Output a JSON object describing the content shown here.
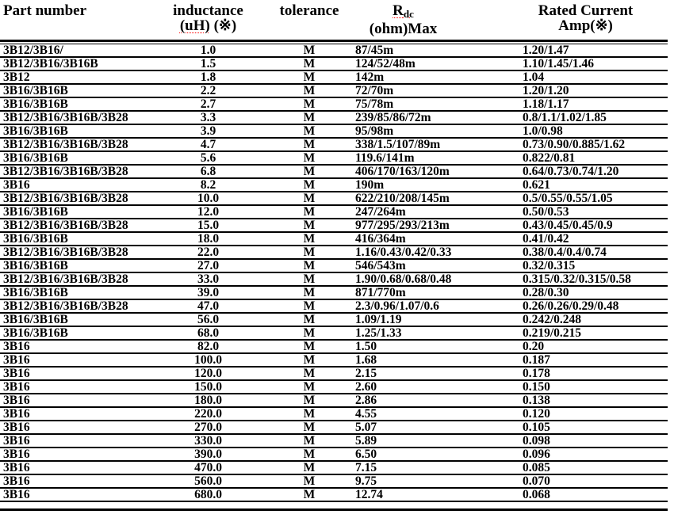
{
  "header": {
    "part_number": "Part number",
    "inductance_line1": "inductance",
    "inductance_uh": "(uH)",
    "inductance_ref": "(※)",
    "tolerance": "tolerance",
    "rdc_main": "R",
    "rdc_sub": "dc",
    "rdc_line2": "(ohm)Max",
    "rated_line1": "Rated Current",
    "rated_line2": "Amp(※)"
  },
  "colors": {
    "text": "#000000",
    "rule": "#000000",
    "spellcheck_underline": "#ff0000",
    "background": "#ffffff"
  },
  "table": {
    "columns": [
      "Part number",
      "inductance (uH) (※)",
      "tolerance",
      "Rdc (ohm)Max",
      "Rated Current Amp(※)"
    ],
    "rows": [
      {
        "part": "3B12/3B16/",
        "ind": "1.0",
        "tol": "M",
        "rdc": "87/45m",
        "rated": "1.20/1.47"
      },
      {
        "part": "3B12/3B16/3B16B",
        "ind": "1.5",
        "tol": "M",
        "rdc": "124/52/48m",
        "rated": "1.10/1.45/1.46"
      },
      {
        "part": "3B12",
        "ind": "1.8",
        "tol": "M",
        "rdc": "142m",
        "rated": "1.04"
      },
      {
        "part": "3B16/3B16B",
        "ind": "2.2",
        "tol": "M",
        "rdc": "72/70m",
        "rated": "1.20/1.20"
      },
      {
        "part": "3B16/3B16B",
        "ind": "2.7",
        "tol": "M",
        "rdc": "75/78m",
        "rated": "1.18/1.17"
      },
      {
        "part": "3B12/3B16/3B16B/3B28",
        "ind": "3.3",
        "tol": "M",
        "rdc": "239/85/86/72m",
        "rated": "0.8/1.1/1.02/1.85"
      },
      {
        "part": "3B16/3B16B",
        "ind": "3.9",
        "tol": "M",
        "rdc": "95/98m",
        "rated": "1.0/0.98"
      },
      {
        "part": "3B12/3B16/3B16B/3B28",
        "ind": "4.7",
        "tol": "M",
        "rdc": "338/1.5/107/89m",
        "rated": "0.73/0.90/0.885/1.62"
      },
      {
        "part": "3B16/3B16B",
        "ind": "5.6",
        "tol": "M",
        "rdc": "119.6/141m",
        "rated": "0.822/0.81"
      },
      {
        "part": "3B12/3B16/3B16B/3B28",
        "ind": "6.8",
        "tol": "M",
        "rdc": "406/170/163/120m",
        "rated": "0.64/0.73/0.74/1.20"
      },
      {
        "part": "3B16",
        "ind": "8.2",
        "tol": "M",
        "rdc": "190m",
        "rated": "0.621"
      },
      {
        "part": "3B12/3B16/3B16B/3B28",
        "ind": "10.0",
        "tol": "M",
        "rdc": "622/210/208/145m",
        "rated": "0.5/0.55/0.55/1.05"
      },
      {
        "part": "3B16/3B16B",
        "ind": "12.0",
        "tol": "M",
        "rdc": "247/264m",
        "rated": "0.50/0.53"
      },
      {
        "part": "3B12/3B16/3B16B/3B28",
        "ind": "15.0",
        "tol": "M",
        "rdc": "977/295/293/213m",
        "rated": "0.43/0.45/0.45/0.9"
      },
      {
        "part": "3B16/3B16B",
        "ind": "18.0",
        "tol": "M",
        "rdc": "416/364m",
        "rated": "0.41/0.42"
      },
      {
        "part": "3B12/3B16/3B16B/3B28",
        "ind": "22.0",
        "tol": "M",
        "rdc": "1.16/0.43/0.42/0.33",
        "rated": "0.38/0.4/0.4/0.74"
      },
      {
        "part": "3B16/3B16B",
        "ind": "27.0",
        "tol": "M",
        "rdc": "546/543m",
        "rated": "0.32/0.315"
      },
      {
        "part": "3B12/3B16/3B16B/3B28",
        "ind": "33.0",
        "tol": "M",
        "rdc": "1.90/0.68/0.68/0.48",
        "rated": "0.315/0.32/0.315/0.58"
      },
      {
        "part": "3B16/3B16B",
        "ind": "39.0",
        "tol": "M",
        "rdc": "871/770m",
        "rated": "0.28/0.30"
      },
      {
        "part": "3B12/3B16/3B16B/3B28",
        "ind": "47.0",
        "tol": "M",
        "rdc": "2.3/0.96/1.07/0.6",
        "rated": "0.26/0.26/0.29/0.48"
      },
      {
        "part": "3B16/3B16B",
        "ind": "56.0",
        "tol": "M",
        "rdc": "1.09/1.19",
        "rated": "0.242/0.248"
      },
      {
        "part": "3B16/3B16B",
        "ind": "68.0",
        "tol": "M",
        "rdc": "1.25/1.33",
        "rated": "0.219/0.215"
      },
      {
        "part": "3B16",
        "ind": "82.0",
        "tol": "M",
        "rdc": "1.50",
        "rated": "0.20"
      },
      {
        "part": "3B16",
        "ind": "100.0",
        "tol": "M",
        "rdc": "1.68",
        "rated": "0.187"
      },
      {
        "part": "3B16",
        "ind": "120.0",
        "tol": "M",
        "rdc": "2.15",
        "rated": "0.178"
      },
      {
        "part": "3B16",
        "ind": "150.0",
        "tol": "M",
        "rdc": "2.60",
        "rated": "0.150"
      },
      {
        "part": "3B16",
        "ind": "180.0",
        "tol": "M",
        "rdc": "2.86",
        "rated": "0.138"
      },
      {
        "part": "3B16",
        "ind": "220.0",
        "tol": "M",
        "rdc": "4.55",
        "rated": "0.120"
      },
      {
        "part": "3B16",
        "ind": "270.0",
        "tol": "M",
        "rdc": "5.07",
        "rated": "0.105"
      },
      {
        "part": "3B16",
        "ind": "330.0",
        "tol": "M",
        "rdc": "5.89",
        "rated": "0.098"
      },
      {
        "part": "3B16",
        "ind": "390.0",
        "tol": "M",
        "rdc": "6.50",
        "rated": "0.096"
      },
      {
        "part": "3B16",
        "ind": "470.0",
        "tol": "M",
        "rdc": "7.15",
        "rated": "0.085"
      },
      {
        "part": "3B16",
        "ind": "560.0",
        "tol": "M",
        "rdc": "9.75",
        "rated": "0.070"
      },
      {
        "part": "3B16",
        "ind": "680.0",
        "tol": "M",
        "rdc": "12.74",
        "rated": "0.068"
      }
    ]
  }
}
